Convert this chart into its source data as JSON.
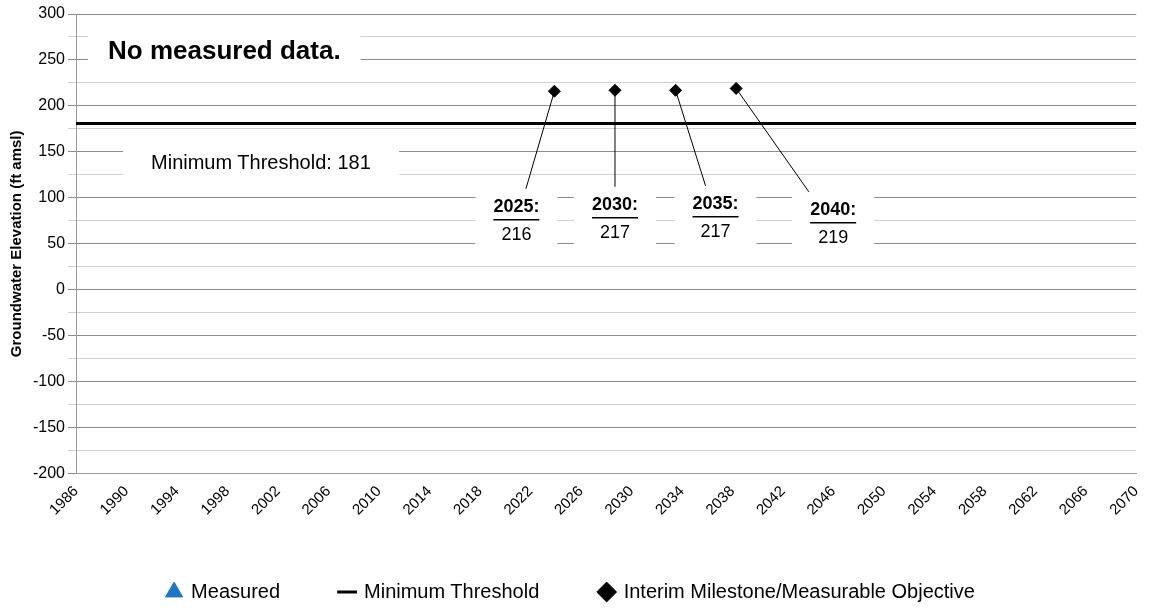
{
  "chart_data": {
    "type": "scatter",
    "ylabel": "Groundwater Elevation (ft amsl)",
    "xlim": [
      1986,
      2070
    ],
    "xticks": [
      1986,
      1990,
      1994,
      1998,
      2002,
      2006,
      2010,
      2014,
      2018,
      2022,
      2026,
      2030,
      2034,
      2038,
      2042,
      2046,
      2050,
      2054,
      2058,
      2062,
      2066,
      2070
    ],
    "ylim": [
      -200,
      300
    ],
    "yticks": [
      -200,
      {
        "value": -175,
        "label": null
      },
      -150,
      {
        "value": -125,
        "label": null
      },
      -100,
      {
        "value": -75,
        "label": null
      },
      -50,
      {
        "value": -25,
        "label": null
      },
      0,
      {
        "value": 25,
        "label": null
      },
      50,
      {
        "value": 75,
        "label": null
      },
      100,
      {
        "value": 125,
        "label": null
      },
      150,
      {
        "value": 175,
        "label": null
      },
      200,
      {
        "value": 225,
        "label": null
      },
      250,
      {
        "value": 275,
        "label": null
      },
      300
    ],
    "grid": "y",
    "legend": "bottom",
    "series": [
      {
        "name": "Measured",
        "type": "scatter",
        "color": "#1f77c4",
        "marker": "triangle"
      },
      {
        "name": "Minimum Threshold",
        "type": "line",
        "color": "#000000",
        "marker": "none",
        "line_style": "solid",
        "x": [
          1986,
          2070
        ],
        "values": [
          181,
          181
        ]
      },
      {
        "name": "Interim Milestone/Measurable Objective",
        "type": "scatter",
        "color": "#000000",
        "marker": "diamond",
        "x": [
          2023.9,
          2028.7,
          2033.5,
          2038.3
        ],
        "values": [
          216,
          217,
          217,
          219
        ]
      }
    ],
    "annotations": [
      {
        "text": "Minimum Threshold: 181",
        "y": 181
      },
      "No measured data.",
      {
        "text": "2025:\n216",
        "x": 2023.9,
        "y": 216
      },
      {
        "text": "2030:\n217",
        "x": 2028.7,
        "y": 217
      },
      {
        "text": "2035:\n217",
        "x": 2033.5,
        "y": 217
      },
      {
        "text": "2040:\n219",
        "x": 2038.3,
        "y": 219
      }
    ]
  }
}
